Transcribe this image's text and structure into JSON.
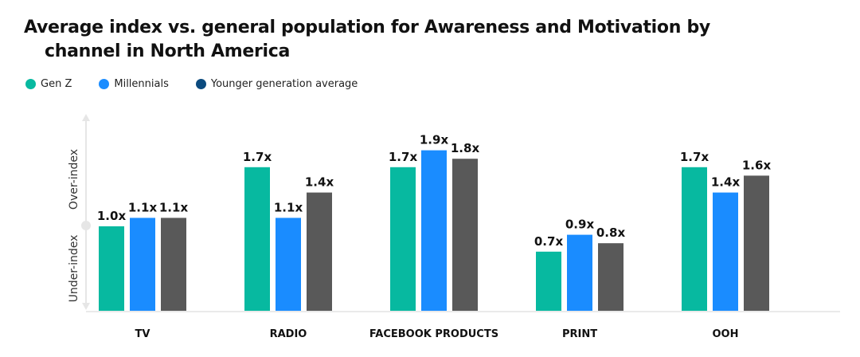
{
  "chart_data": {
    "type": "bar",
    "title_line1": "Average index vs. general population for Awareness and Motivation by",
    "title_line2": "channel in North America",
    "categories": [
      "TV",
      "RADIO",
      "FACEBOOK  PRODUCTS",
      "PRINT",
      "OOH"
    ],
    "series": [
      {
        "name": "Gen Z",
        "values": [
          1.0,
          1.7,
          1.7,
          0.7,
          1.7
        ],
        "labels": [
          "1.0x",
          "1.7x",
          "1.7x",
          "0.7x",
          "1.7x"
        ],
        "color": "#07b9a0",
        "legend_color": "#07b9a0"
      },
      {
        "name": "Millennials",
        "values": [
          1.1,
          1.1,
          1.9,
          0.9,
          1.4
        ],
        "labels": [
          "1.1x",
          "1.1x",
          "1.9x",
          "0.9x",
          "1.4x"
        ],
        "color": "#1a8cff",
        "legend_color": "#1a8cff"
      },
      {
        "name": "Younger generation average",
        "values": [
          1.1,
          1.4,
          1.8,
          0.8,
          1.6
        ],
        "labels": [
          "1.1x",
          "1.4x",
          "1.8x",
          "0.8x",
          "1.6x"
        ],
        "color": "#595959",
        "legend_color": "#0b4a7e"
      }
    ],
    "ylabel_upper": "Over-index",
    "ylabel_lower": "Under-index",
    "ylim": [
      0,
      2.2
    ],
    "grid": false,
    "legend_position": "top-left"
  }
}
